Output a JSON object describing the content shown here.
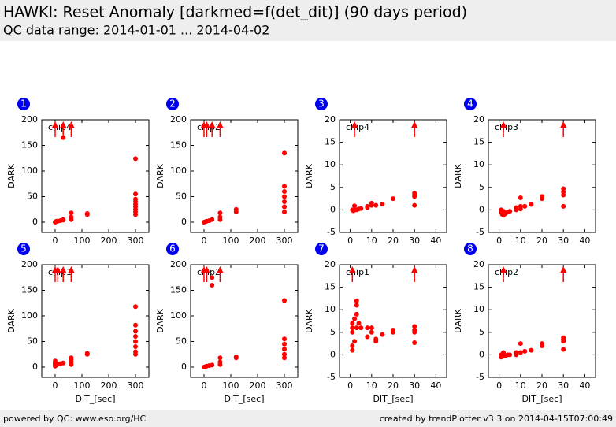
{
  "header": {
    "title": "HAWKI: Reset Anomaly [darkmed=f(det_dit)] (90 days period)",
    "subtitle": "QC data range: 2014-01-01 ... 2014-04-02"
  },
  "footer": {
    "left": "powered by QC: www.eso.org/HC",
    "right": "created by trendPlotter v3.3 on 2014-04-15T07:00:49"
  },
  "chart_data": [
    {
      "type": "scatter",
      "number": "1",
      "annotation": "chip4",
      "ylabel": "DARK",
      "xlim": [
        -50,
        350
      ],
      "xticks": [
        0,
        100,
        200,
        300
      ],
      "ylim": [
        -20,
        200
      ],
      "yticks": [
        0,
        50,
        100,
        150,
        200
      ],
      "color": "#ff0000",
      "series": [
        {
          "x": [
            0,
            3,
            5,
            10,
            20,
            30,
            30,
            60,
            60,
            60,
            120,
            120,
            300,
            300,
            300,
            300,
            300,
            300,
            300,
            300,
            300,
            30
          ],
          "values": [
            0,
            1,
            2,
            2,
            3,
            4,
            5,
            5,
            10,
            18,
            15,
            17,
            124,
            55,
            45,
            40,
            35,
            30,
            25,
            20,
            15,
            165
          ]
        }
      ],
      "outliers_x": [
        0,
        30,
        60
      ]
    },
    {
      "type": "scatter",
      "number": "2",
      "annotation": "chip2",
      "ylabel": "DARK",
      "xlim": [
        -50,
        350
      ],
      "xticks": [
        0,
        100,
        200,
        300
      ],
      "ylim": [
        -20,
        200
      ],
      "yticks": [
        0,
        50,
        100,
        150,
        200
      ],
      "color": "#ff0000",
      "series": [
        {
          "x": [
            0,
            5,
            10,
            20,
            30,
            60,
            60,
            60,
            120,
            120,
            300,
            300,
            300,
            300,
            300,
            300,
            300
          ],
          "values": [
            0,
            1,
            2,
            3,
            5,
            5,
            10,
            18,
            20,
            25,
            135,
            70,
            60,
            50,
            40,
            30,
            20
          ]
        }
      ],
      "outliers_x": [
        0,
        10,
        30,
        60
      ]
    },
    {
      "type": "scatter",
      "number": "3",
      "annotation": "chip4",
      "ylabel": "DARK",
      "xlim": [
        -5,
        45
      ],
      "xticks": [
        0,
        10,
        20,
        30,
        40
      ],
      "ylim": [
        -5,
        20
      ],
      "yticks": [
        -5,
        0,
        5,
        10,
        15,
        20
      ],
      "color": "#ff0000",
      "series": [
        {
          "x": [
            1,
            1.5,
            2,
            2,
            3,
            4,
            5,
            8,
            8,
            10,
            10,
            12,
            15,
            20,
            30,
            30,
            30,
            30
          ],
          "values": [
            0,
            -0.2,
            0.1,
            0.9,
            0,
            0.2,
            0.3,
            0.5,
            0.8,
            1,
            1.5,
            1,
            1.3,
            2.5,
            1,
            3,
            3.3,
            3.7
          ]
        }
      ],
      "outliers_x": [
        2,
        30
      ]
    },
    {
      "type": "scatter",
      "number": "4",
      "annotation": "chip3",
      "ylabel": "DARK",
      "xlim": [
        -5,
        45
      ],
      "xticks": [
        0,
        10,
        20,
        30,
        40
      ],
      "ylim": [
        -5,
        20
      ],
      "yticks": [
        -5,
        0,
        5,
        10,
        15,
        20
      ],
      "color": "#ff0000",
      "series": [
        {
          "x": [
            1,
            1,
            1.5,
            2,
            2,
            3,
            4,
            5,
            8,
            8,
            10,
            10,
            10,
            12,
            15,
            20,
            20,
            30,
            30,
            30,
            30
          ],
          "values": [
            0,
            -0.5,
            -1,
            -0.3,
            -1.2,
            -0.8,
            -0.5,
            -0.3,
            0,
            0.5,
            0.2,
            0.8,
            2.7,
            0.8,
            1.2,
            2.5,
            3,
            0.8,
            3.3,
            4,
            4.7
          ]
        }
      ],
      "outliers_x": [
        2,
        30
      ]
    },
    {
      "type": "scatter",
      "number": "5",
      "annotation": "chip1",
      "xlabel": "DIT_[sec]",
      "ylabel": "DARK",
      "xlim": [
        -50,
        350
      ],
      "xticks": [
        0,
        100,
        200,
        300
      ],
      "ylim": [
        -20,
        200
      ],
      "yticks": [
        0,
        50,
        100,
        150,
        200
      ],
      "color": "#ff0000",
      "series": [
        {
          "x": [
            0,
            0,
            0,
            0,
            5,
            10,
            20,
            30,
            60,
            60,
            60,
            60,
            120,
            120,
            300,
            300,
            300,
            300,
            300,
            300,
            300,
            300
          ],
          "values": [
            2,
            5,
            8,
            12,
            4,
            6,
            7,
            8,
            5,
            10,
            15,
            18,
            25,
            27,
            118,
            82,
            70,
            60,
            50,
            40,
            30,
            25
          ]
        }
      ],
      "outliers_x": [
        0,
        10,
        30,
        60
      ]
    },
    {
      "type": "scatter",
      "number": "6",
      "annotation": "chip2",
      "xlabel": "DIT_[sec]",
      "ylabel": "DARK",
      "xlim": [
        -50,
        350
      ],
      "xticks": [
        0,
        100,
        200,
        300
      ],
      "ylim": [
        -20,
        200
      ],
      "yticks": [
        0,
        50,
        100,
        150,
        200
      ],
      "color": "#ff0000",
      "series": [
        {
          "x": [
            0,
            5,
            10,
            20,
            30,
            30,
            30,
            60,
            60,
            60,
            120,
            120,
            300,
            300,
            300,
            300,
            300,
            300
          ],
          "values": [
            0,
            1,
            2,
            3,
            4,
            175,
            160,
            5,
            10,
            18,
            18,
            20,
            130,
            55,
            45,
            35,
            25,
            18
          ]
        }
      ],
      "outliers_x": [
        0,
        10,
        60
      ]
    },
    {
      "type": "scatter",
      "number": "7",
      "annotation": "chip1",
      "xlabel": "DIT_[sec]",
      "ylabel": "DARK",
      "xlim": [
        -5,
        45
      ],
      "xticks": [
        0,
        10,
        20,
        30,
        40
      ],
      "ylim": [
        -5,
        20
      ],
      "yticks": [
        -5,
        0,
        5,
        10,
        15,
        20
      ],
      "color": "#ff0000",
      "series": [
        {
          "x": [
            1,
            1,
            1,
            1,
            1,
            2,
            2,
            3,
            3,
            3,
            3,
            4,
            5,
            8,
            8,
            10,
            10,
            12,
            12,
            15,
            20,
            20,
            30,
            30,
            30,
            30
          ],
          "values": [
            1,
            2,
            5,
            6,
            7,
            3,
            8,
            9,
            11,
            12,
            6,
            7,
            6,
            4,
            6,
            5,
            6,
            3,
            3.5,
            4.5,
            5,
            5.5,
            2.7,
            5,
            5.5,
            6.3
          ]
        }
      ],
      "outliers_x": [
        1,
        30
      ]
    },
    {
      "type": "scatter",
      "number": "8",
      "annotation": "chip2",
      "xlabel": "DIT_[sec]",
      "ylabel": "DARK",
      "xlim": [
        -5,
        45
      ],
      "xticks": [
        0,
        10,
        20,
        30,
        40
      ],
      "ylim": [
        -5,
        20
      ],
      "yticks": [
        -5,
        0,
        5,
        10,
        15,
        20
      ],
      "color": "#ff0000",
      "series": [
        {
          "x": [
            1,
            1,
            2,
            2,
            3,
            4,
            5,
            8,
            8,
            10,
            10,
            12,
            15,
            20,
            20,
            30,
            30,
            30,
            30
          ],
          "values": [
            -0.5,
            0,
            -0.3,
            0.5,
            -0.2,
            0,
            0,
            0,
            0.5,
            0.5,
            2.5,
            0.8,
            1,
            2,
            2.5,
            1.2,
            3,
            3.5,
            3.8
          ]
        }
      ],
      "outliers_x": [
        2,
        30
      ]
    }
  ]
}
